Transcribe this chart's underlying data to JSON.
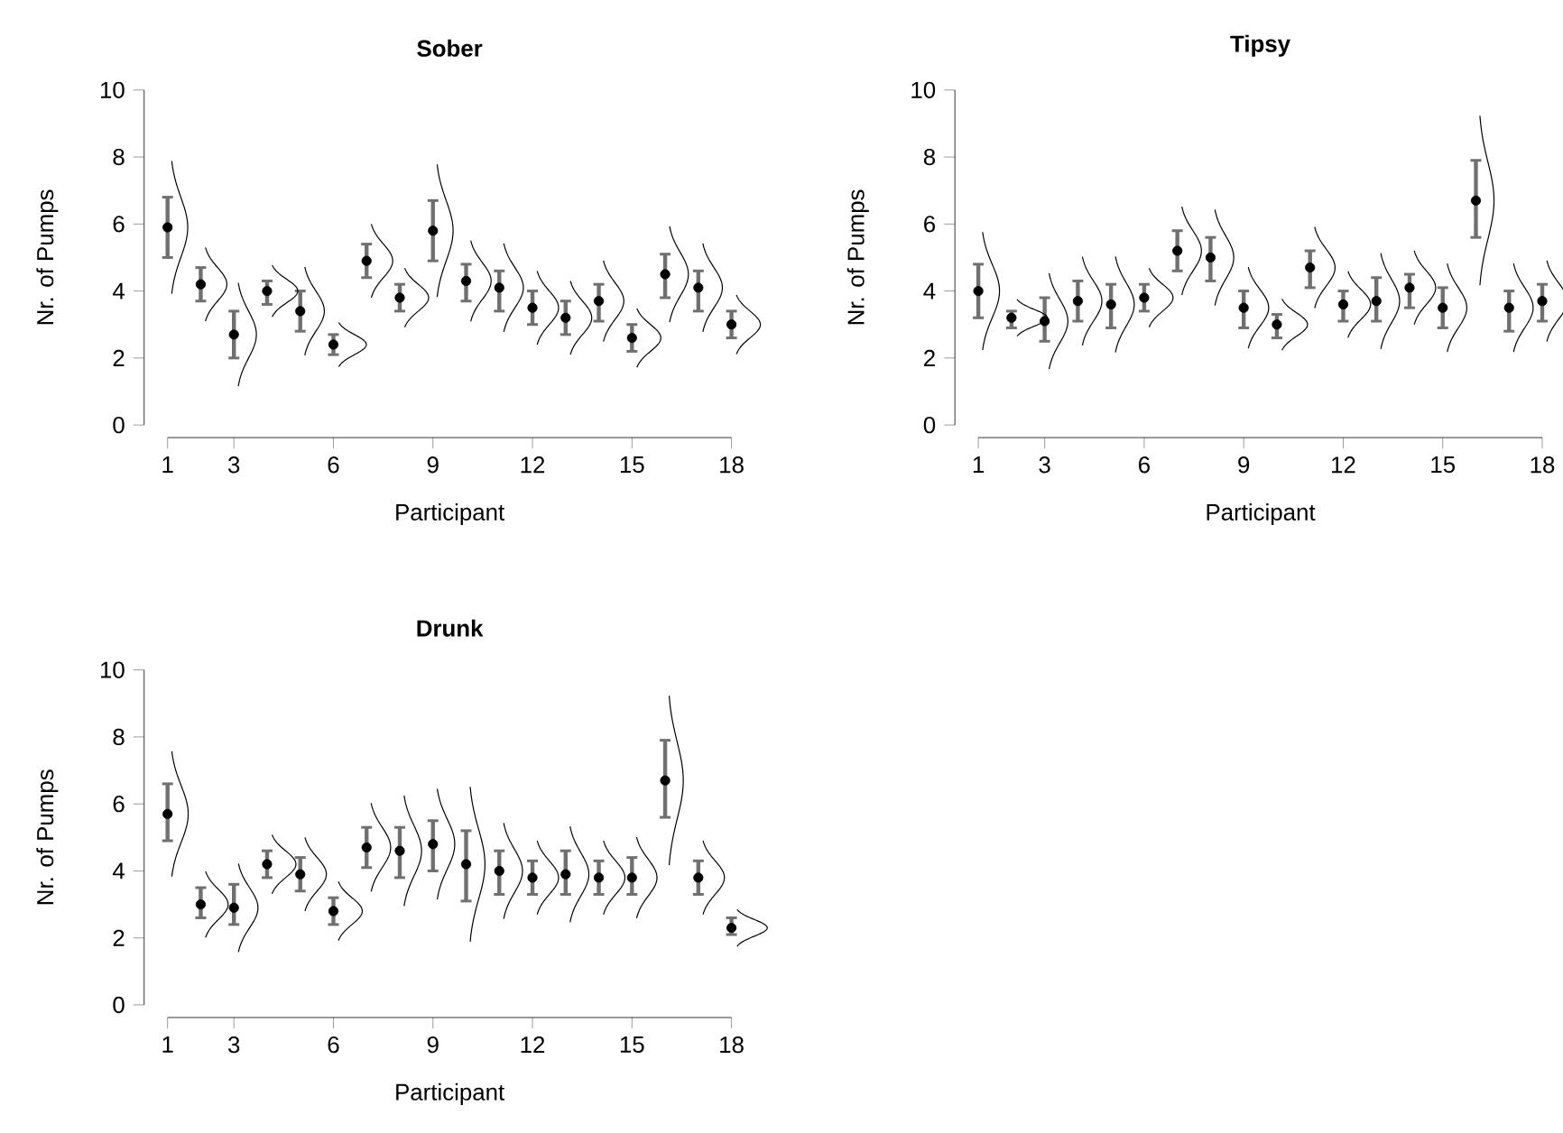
{
  "chart_data": [
    {
      "type": "scatter",
      "title": "Sober",
      "xlabel": "Participant",
      "ylabel": "Nr. of Pumps",
      "color": "#000000",
      "marker": "circle",
      "x": [
        1,
        2,
        3,
        4,
        5,
        6,
        7,
        8,
        9,
        10,
        11,
        12,
        13,
        14,
        15,
        16,
        17,
        18
      ],
      "values": [
        5.9,
        4.2,
        2.7,
        4.0,
        3.4,
        2.4,
        4.9,
        3.8,
        5.8,
        4.3,
        4.1,
        3.5,
        3.2,
        3.7,
        2.6,
        4.5,
        4.1,
        3.0
      ],
      "errors": [
        [
          5.0,
          6.8
        ],
        [
          3.7,
          4.7
        ],
        [
          2.0,
          3.4
        ],
        [
          3.6,
          4.3
        ],
        [
          2.8,
          4.0
        ],
        [
          2.1,
          2.7
        ],
        [
          4.4,
          5.4
        ],
        [
          3.4,
          4.2
        ],
        [
          4.9,
          6.7
        ],
        [
          3.7,
          4.8
        ],
        [
          3.4,
          4.6
        ],
        [
          3.0,
          4.0
        ],
        [
          2.7,
          3.7
        ],
        [
          3.1,
          4.2
        ],
        [
          2.2,
          3.0
        ],
        [
          3.8,
          5.1
        ],
        [
          3.4,
          4.6
        ],
        [
          2.6,
          3.4
        ]
      ],
      "xlim": [
        1,
        18
      ],
      "ylim": [
        0,
        10
      ],
      "xticks": [
        1,
        3,
        6,
        9,
        12,
        15,
        18
      ],
      "yticks": [
        0,
        2,
        4,
        6,
        8,
        10
      ]
    },
    {
      "type": "scatter",
      "title": "Tipsy",
      "xlabel": "Participant",
      "ylabel": "Nr. of Pumps",
      "color": "#000000",
      "marker": "circle",
      "x": [
        1,
        2,
        3,
        4,
        5,
        6,
        7,
        8,
        9,
        10,
        11,
        12,
        13,
        14,
        15,
        16,
        17,
        18
      ],
      "values": [
        4.0,
        3.2,
        3.1,
        3.7,
        3.6,
        3.8,
        5.2,
        5.0,
        3.5,
        3.0,
        4.7,
        3.6,
        3.7,
        4.1,
        3.5,
        6.7,
        3.5,
        3.7
      ],
      "errors": [
        [
          3.2,
          4.8
        ],
        [
          2.9,
          3.4
        ],
        [
          2.5,
          3.8
        ],
        [
          3.1,
          4.3
        ],
        [
          2.9,
          4.2
        ],
        [
          3.4,
          4.2
        ],
        [
          4.6,
          5.8
        ],
        [
          4.3,
          5.6
        ],
        [
          2.9,
          4.0
        ],
        [
          2.6,
          3.3
        ],
        [
          4.1,
          5.2
        ],
        [
          3.1,
          4.0
        ],
        [
          3.1,
          4.4
        ],
        [
          3.5,
          4.5
        ],
        [
          2.9,
          4.1
        ],
        [
          5.6,
          7.9
        ],
        [
          2.8,
          4.0
        ],
        [
          3.1,
          4.2
        ]
      ],
      "xlim": [
        1,
        18
      ],
      "ylim": [
        0,
        10
      ],
      "xticks": [
        1,
        3,
        6,
        9,
        12,
        15,
        18
      ],
      "yticks": [
        0,
        2,
        4,
        6,
        8,
        10
      ]
    },
    {
      "type": "scatter",
      "title": "Drunk",
      "xlabel": "Participant",
      "ylabel": "Nr. of Pumps",
      "color": "#000000",
      "marker": "circle",
      "x": [
        1,
        2,
        3,
        4,
        5,
        6,
        7,
        8,
        9,
        10,
        11,
        12,
        13,
        14,
        15,
        16,
        17,
        18
      ],
      "values": [
        5.7,
        3.0,
        2.9,
        4.2,
        3.9,
        2.8,
        4.7,
        4.6,
        4.8,
        4.2,
        4.0,
        3.8,
        3.9,
        3.8,
        3.8,
        6.7,
        3.8,
        2.3
      ],
      "errors": [
        [
          4.9,
          6.6
        ],
        [
          2.6,
          3.5
        ],
        [
          2.4,
          3.6
        ],
        [
          3.8,
          4.6
        ],
        [
          3.4,
          4.4
        ],
        [
          2.4,
          3.2
        ],
        [
          4.1,
          5.3
        ],
        [
          3.8,
          5.3
        ],
        [
          4.0,
          5.5
        ],
        [
          3.1,
          5.2
        ],
        [
          3.3,
          4.6
        ],
        [
          3.3,
          4.3
        ],
        [
          3.3,
          4.6
        ],
        [
          3.3,
          4.3
        ],
        [
          3.3,
          4.4
        ],
        [
          5.6,
          7.9
        ],
        [
          3.3,
          4.3
        ],
        [
          2.1,
          2.6
        ]
      ],
      "xlim": [
        1,
        18
      ],
      "ylim": [
        0,
        10
      ],
      "xticks": [
        1,
        3,
        6,
        9,
        12,
        15,
        18
      ],
      "yticks": [
        0,
        2,
        4,
        6,
        8,
        10
      ]
    }
  ]
}
